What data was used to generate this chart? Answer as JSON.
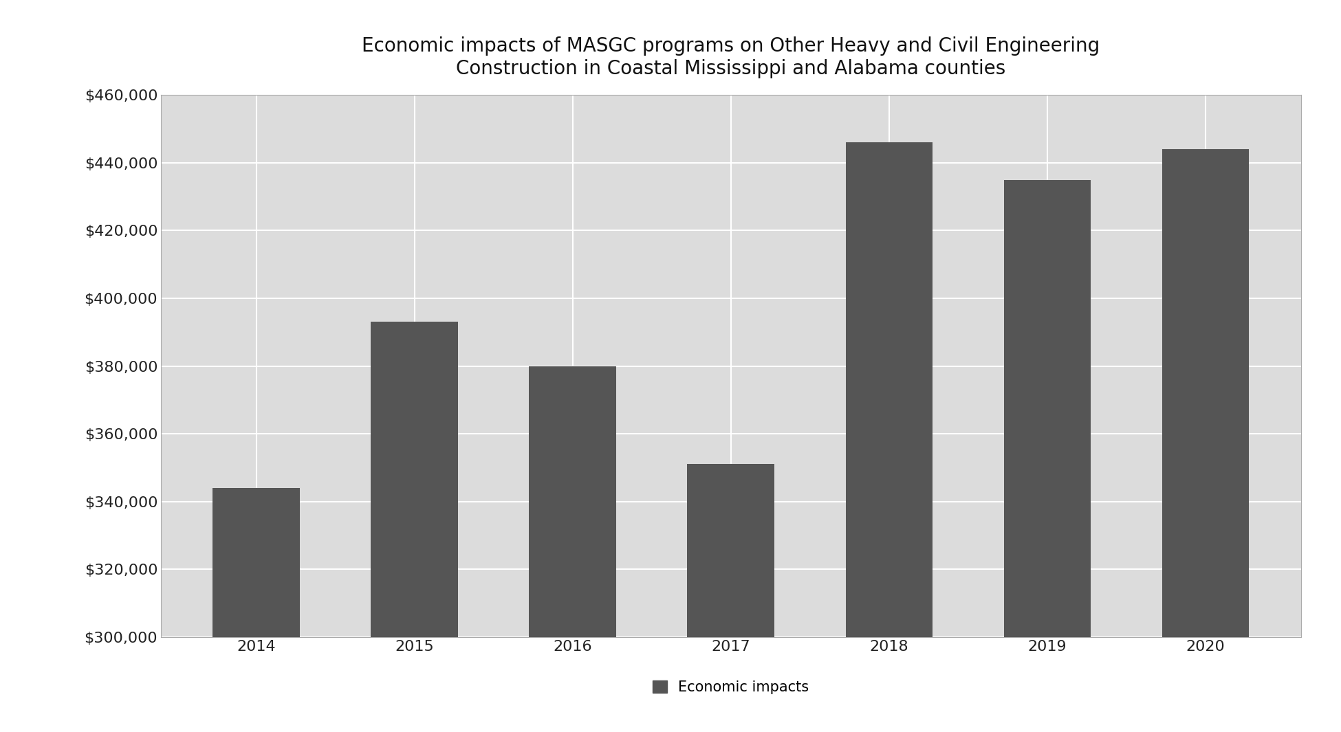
{
  "title": "Economic impacts of MASGC programs on Other Heavy and Civil Engineering\nConstruction in Coastal Mississippi and Alabama counties",
  "categories": [
    "2014",
    "2015",
    "2016",
    "2017",
    "2018",
    "2019",
    "2020"
  ],
  "values": [
    344000,
    393000,
    380000,
    351000,
    446000,
    435000,
    444000
  ],
  "bar_color": "#555555",
  "plot_bg_color": "#dcdcdc",
  "outer_bg_color": "#ffffff",
  "ylim": [
    300000,
    460000
  ],
  "yticks": [
    300000,
    320000,
    340000,
    360000,
    380000,
    400000,
    420000,
    440000,
    460000
  ],
  "legend_label": "Economic impacts",
  "title_fontsize": 20,
  "tick_fontsize": 16,
  "legend_fontsize": 15,
  "bar_width": 0.55,
  "grid_color": "#ffffff",
  "grid_linewidth": 1.5,
  "spine_color": "#aaaaaa"
}
